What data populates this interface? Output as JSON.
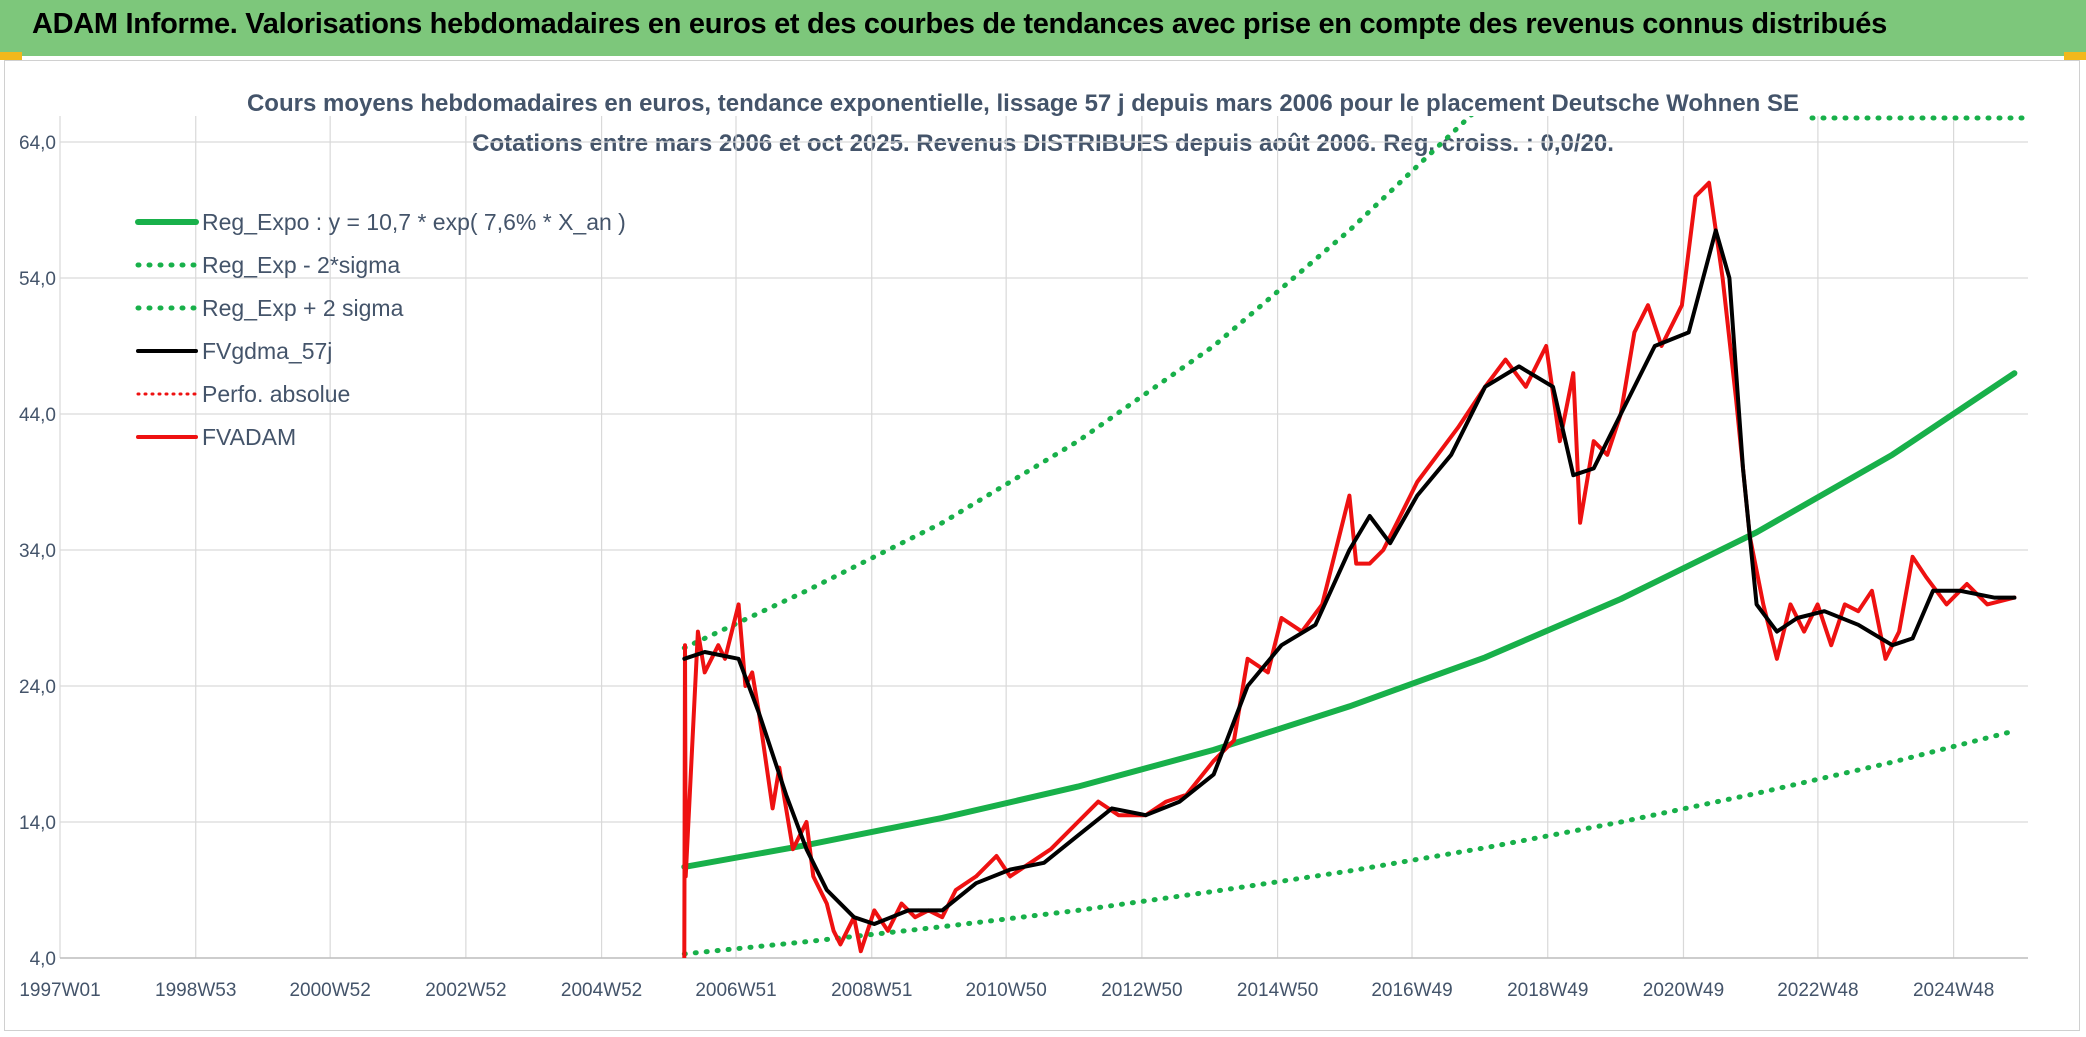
{
  "header": {
    "title": "ADAM Informe. Valorisations hebdomadaires en euros et des courbes de tendances avec prise en compte des revenus connus distribués"
  },
  "chart_data": {
    "type": "line",
    "title": "Cours moyens hebdomadaires en euros, tendance exponentielle, lissage 57 j depuis mars 2006 pour le placement Deutsche Wohnen SE",
    "subtitle": "Cotations entre mars 2006 et oct 2025. Revenus DISTRIBUES depuis août 2006. Reg. croiss. : 0,0/20.",
    "xlabel": "",
    "ylabel": "",
    "x_ticks": [
      "1997W01",
      "1998W53",
      "2000W52",
      "2002W52",
      "2004W52",
      "2006W51",
      "2008W51",
      "2010W50",
      "2012W50",
      "2014W50",
      "2016W49",
      "2018W49",
      "2020W49",
      "2022W48",
      "2024W48"
    ],
    "y_ticks": [
      "4,0",
      "14,0",
      "24,0",
      "34,0",
      "44,0",
      "54,0",
      "64,0"
    ],
    "xlim": [
      1997.0,
      2026.0
    ],
    "ylim": [
      4.0,
      64.0
    ],
    "grid": true,
    "legend_position": "top-left",
    "colors": {
      "green": "#18b04a",
      "green_dotted": "#18b04a",
      "black": "#000000",
      "red": "#ee1111",
      "red_dotted": "#ee1111",
      "grid": "#d9d9d9",
      "axis_text": "#44546a"
    },
    "series": [
      {
        "name": "Reg_Expo : y = 10,7 * exp( 7,6% *  X_an )",
        "style": "solid-green-thick",
        "x": [
          2006.2,
          2008,
          2010,
          2012,
          2014,
          2016,
          2018,
          2020,
          2022,
          2024,
          2025.8
        ],
        "values": [
          10.7,
          12.3,
          14.3,
          16.6,
          19.3,
          22.5,
          26.1,
          30.4,
          35.3,
          41.0,
          47.0
        ]
      },
      {
        "name": "Reg_Exp - 2*sigma",
        "style": "dotted-green",
        "x": [
          2006.2,
          2008,
          2010,
          2012,
          2014,
          2016,
          2018,
          2020,
          2022,
          2024,
          2025.8
        ],
        "values": [
          4.3,
          5.2,
          6.3,
          7.5,
          8.9,
          10.4,
          12.1,
          14.0,
          16.1,
          18.4,
          20.7
        ]
      },
      {
        "name": "Reg_Exp + 2 sigma",
        "style": "dotted-green",
        "x": [
          2006.2,
          2008,
          2010,
          2012,
          2014,
          2016,
          2017.8
        ],
        "values": [
          26.8,
          31.0,
          36.0,
          42.0,
          49.0,
          57.5,
          66.0
        ]
      },
      {
        "name": "FVgdma_57j",
        "style": "solid-black",
        "x": [
          2006.2,
          2006.5,
          2007.0,
          2007.3,
          2007.7,
          2008.0,
          2008.3,
          2008.7,
          2009.0,
          2009.5,
          2010.0,
          2010.5,
          2011.0,
          2011.5,
          2012.0,
          2012.5,
          2013.0,
          2013.5,
          2014.0,
          2014.5,
          2015.0,
          2015.5,
          2016.0,
          2016.3,
          2016.6,
          2017.0,
          2017.5,
          2018.0,
          2018.5,
          2019.0,
          2019.3,
          2019.6,
          2020.0,
          2020.5,
          2021.0,
          2021.4,
          2021.6,
          2021.8,
          2022.0,
          2022.3,
          2022.6,
          2023.0,
          2023.5,
          2024.0,
          2024.3,
          2024.6,
          2025.0,
          2025.5,
          2025.8
        ],
        "values": [
          26.0,
          26.5,
          26.0,
          22.0,
          16.0,
          12.0,
          9.0,
          7.0,
          6.5,
          7.5,
          7.5,
          9.5,
          10.5,
          11.0,
          13.0,
          15.0,
          14.5,
          15.5,
          17.5,
          24.0,
          27.0,
          28.5,
          34.0,
          36.5,
          34.5,
          38.0,
          41.0,
          46.0,
          47.5,
          46.0,
          39.5,
          40.0,
          44.0,
          49.0,
          50.0,
          57.5,
          54.0,
          40.0,
          30.0,
          28.0,
          29.0,
          29.5,
          28.5,
          27.0,
          27.5,
          31.0,
          31.0,
          30.5,
          30.5
        ]
      },
      {
        "name": "Perfo. absolue",
        "style": "dotted-red",
        "x": [],
        "values": []
      },
      {
        "name": "FVADAM",
        "style": "solid-red-thick",
        "x": [
          2006.2,
          2006.21,
          2006.22,
          2006.4,
          2006.5,
          2006.7,
          2006.8,
          2007.0,
          2007.1,
          2007.2,
          2007.3,
          2007.5,
          2007.6,
          2007.8,
          2008.0,
          2008.1,
          2008.3,
          2008.4,
          2008.5,
          2008.7,
          2008.8,
          2009.0,
          2009.2,
          2009.4,
          2009.6,
          2009.8,
          2010.0,
          2010.2,
          2010.5,
          2010.8,
          2011.0,
          2011.3,
          2011.6,
          2012.0,
          2012.3,
          2012.6,
          2013.0,
          2013.3,
          2013.6,
          2014.0,
          2014.3,
          2014.5,
          2014.8,
          2015.0,
          2015.3,
          2015.6,
          2016.0,
          2016.1,
          2016.3,
          2016.5,
          2016.8,
          2017.0,
          2017.3,
          2017.6,
          2018.0,
          2018.3,
          2018.6,
          2018.9,
          2019.1,
          2019.3,
          2019.4,
          2019.6,
          2019.8,
          2020.0,
          2020.2,
          2020.4,
          2020.6,
          2020.9,
          2021.1,
          2021.3,
          2021.5,
          2021.7,
          2021.9,
          2022.1,
          2022.3,
          2022.5,
          2022.7,
          2022.9,
          2023.1,
          2023.3,
          2023.5,
          2023.7,
          2023.9,
          2024.1,
          2024.3,
          2024.5,
          2024.8,
          2025.1,
          2025.4,
          2025.8
        ],
        "values": [
          4.0,
          27.0,
          10.0,
          28.0,
          25.0,
          27.0,
          26.0,
          30.0,
          24.0,
          25.0,
          22.0,
          15.0,
          18.0,
          12.0,
          14.0,
          10.0,
          8.0,
          6.0,
          5.0,
          7.0,
          4.5,
          7.5,
          6.0,
          8.0,
          7.0,
          7.5,
          7.0,
          9.0,
          10.0,
          11.5,
          10.0,
          11.0,
          12.0,
          14.0,
          15.5,
          14.5,
          14.5,
          15.5,
          16.0,
          18.5,
          20.0,
          26.0,
          25.0,
          29.0,
          28.0,
          30.0,
          38.0,
          33.0,
          33.0,
          34.0,
          37.0,
          39.0,
          41.0,
          43.0,
          46.0,
          48.0,
          46.0,
          49.0,
          42.0,
          47.0,
          36.0,
          42.0,
          41.0,
          44.0,
          50.0,
          52.0,
          49.0,
          52.0,
          60.0,
          61.0,
          54.0,
          45.0,
          35.0,
          30.0,
          26.0,
          30.0,
          28.0,
          30.0,
          27.0,
          30.0,
          29.5,
          31.0,
          26.0,
          28.0,
          33.5,
          32.0,
          30.0,
          31.5,
          30.0,
          30.5
        ]
      }
    ]
  }
}
